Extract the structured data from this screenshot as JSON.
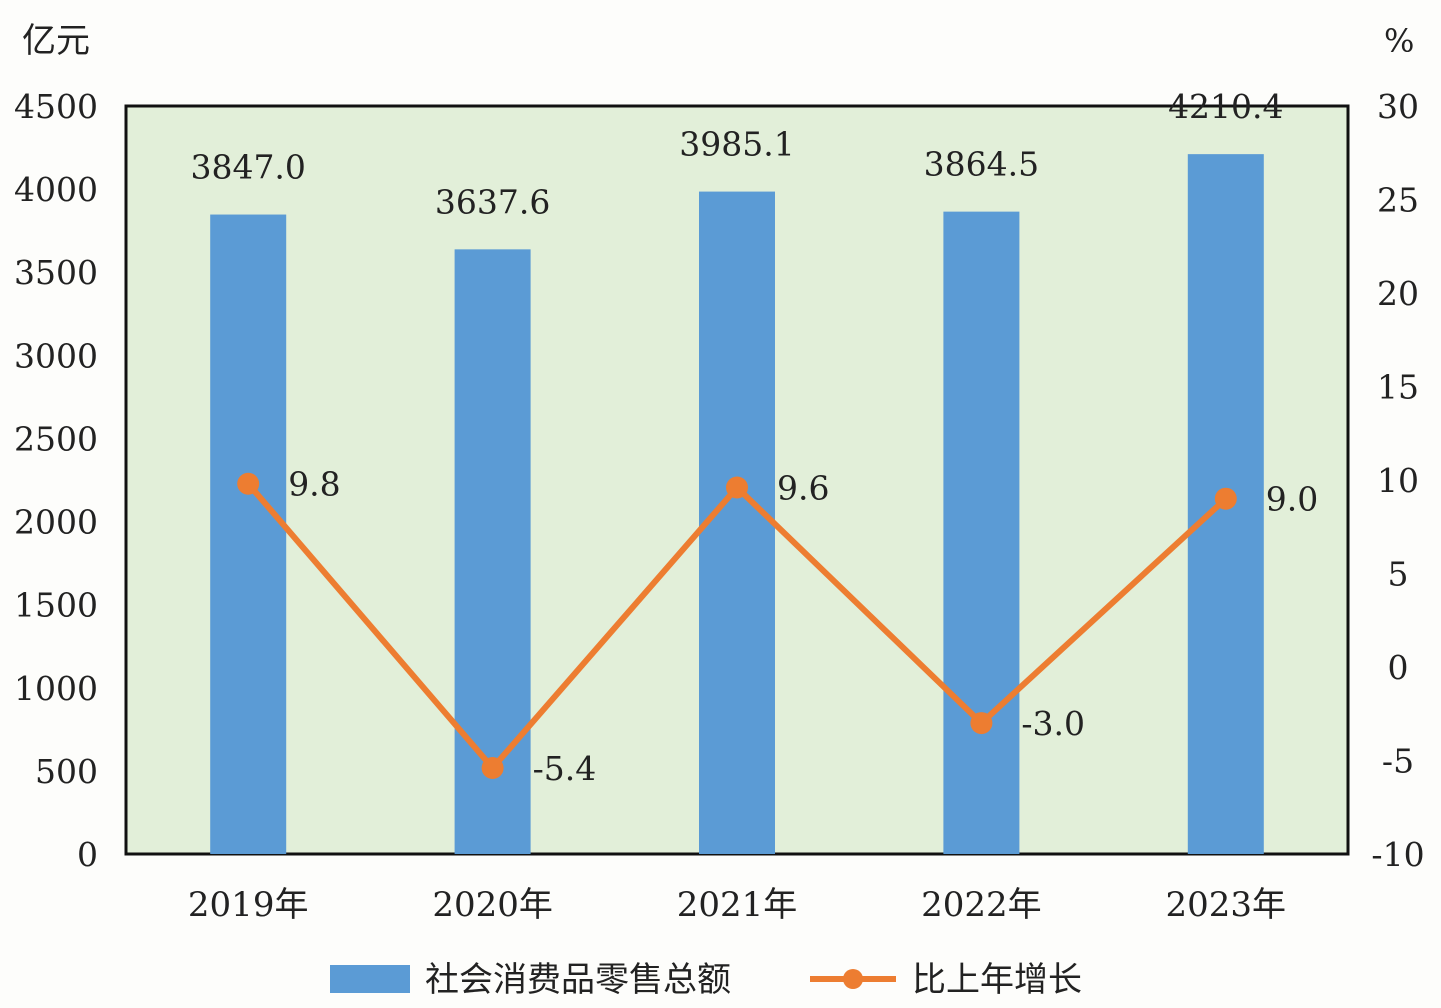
{
  "chart_data": {
    "type": "bar",
    "categories": [
      "2019年",
      "2020年",
      "2021年",
      "2022年",
      "2023年"
    ],
    "series": [
      {
        "name": "社会消费品零售总额",
        "type": "bar",
        "axis": "left",
        "values": [
          3847.0,
          3637.6,
          3985.1,
          3864.5,
          4210.4
        ],
        "labels": [
          "3847.0",
          "3637.6",
          "3985.1",
          "3864.5",
          "4210.4"
        ],
        "color": "#5b9bd5"
      },
      {
        "name": "比上年增长",
        "type": "line",
        "axis": "right",
        "values": [
          9.8,
          -5.4,
          9.6,
          -3.0,
          9.0
        ],
        "labels": [
          "9.8",
          "-5.4",
          "9.6",
          "-3.0",
          "9.0"
        ],
        "color": "#ed7d31"
      }
    ],
    "left_axis": {
      "unit": "亿元",
      "range": [
        0,
        4500
      ],
      "ticks": [
        0,
        500,
        1000,
        1500,
        2000,
        2500,
        3000,
        3500,
        4000,
        4500
      ]
    },
    "right_axis": {
      "unit": "%",
      "range": [
        -10,
        30
      ],
      "ticks": [
        -10,
        -5,
        0,
        5,
        10,
        15,
        20,
        25,
        30
      ]
    },
    "plot_background": "#e2efd9",
    "grid": false,
    "legend_position": "bottom"
  }
}
